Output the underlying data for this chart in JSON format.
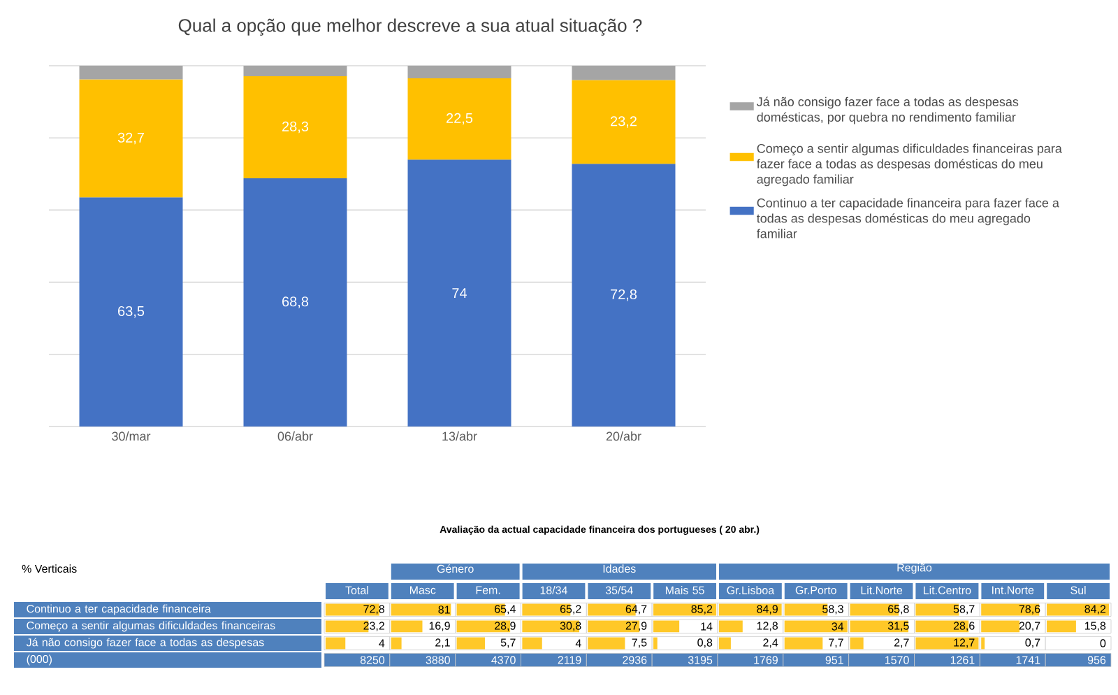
{
  "chart_data": [
    {
      "type": "bar",
      "title": "Qual a opção que melhor descreve a sua atual situação ?",
      "categories": [
        "30/mar",
        "06/abr",
        "13/abr",
        "20/abr"
      ],
      "stacked": true,
      "grid": "y",
      "legend": "right",
      "tick_labels": "x",
      "series": [
        {
          "name": "Continuo a ter capacidade financeira para fazer face a todas as despesas domésticas do meu agregado familiar",
          "color": "#4472c4",
          "values": [
            63.5,
            68.8,
            74,
            72.8
          ],
          "value_labels": [
            "63,5",
            "68,8",
            "74",
            "72,8"
          ]
        },
        {
          "name": "Começo a sentir algumas dificuldades financeiras para fazer face a todas as despesas domésticas do meu agregado familiar",
          "color": "#ffc000",
          "values": [
            32.7,
            28.3,
            22.5,
            23.2
          ],
          "value_labels": [
            "32,7",
            "28,3",
            "22,5",
            "23,2"
          ]
        },
        {
          "name": "Já não consigo fazer face a todas as despesas domésticas, por quebra no rendimento familiar",
          "color": "#a5a5a5",
          "values": [
            3.8,
            2.9,
            3.5,
            4
          ]
        }
      ]
    },
    {
      "type": "heatmap",
      "title": "Avaliação da actual capacidade financeira dos portugueses ( 20 abr.)",
      "annotations": [
        "% Verticais",
        "Género",
        "Idades",
        "Região"
      ],
      "categories": [
        "Total",
        "Masc",
        "Fem.",
        "18/34",
        "35/54",
        "Mais 55",
        "Gr.Lisboa",
        "Gr.Porto",
        "Lit.Norte",
        "Lit.Centro",
        "Int.Norte",
        "Sul"
      ],
      "y_categories": [
        "Continuo a ter capacidade financeira",
        "Começo a sentir algumas dificuldades financeiras",
        "Já não consigo fazer face a todas as despesas",
        "(000)"
      ],
      "cells": [
        [
          72.8,
          81,
          65.4,
          65.2,
          64.7,
          85.2,
          84.9,
          58.3,
          65.8,
          58.7,
          78.6,
          84.2
        ],
        [
          23.2,
          16.9,
          28.9,
          30.8,
          27.9,
          14,
          12.8,
          34,
          31.5,
          28.6,
          20.7,
          15.8
        ],
        [
          4,
          2.1,
          5.7,
          4,
          7.5,
          0.8,
          2.4,
          7.7,
          2.7,
          12.7,
          0.7,
          0
        ],
        [
          8250,
          3880,
          4370,
          2119,
          2936,
          3195,
          1769,
          951,
          1570,
          1261,
          1741,
          956
        ]
      ],
      "cell_labels": [
        [
          "72,8",
          "81",
          "65,4",
          "65,2",
          "64,7",
          "85,2",
          "84,9",
          "58,3",
          "65,8",
          "58,7",
          "78,6",
          "84,2"
        ],
        [
          "23,2",
          "16,9",
          "28,9",
          "30,8",
          "27,9",
          "14",
          "12,8",
          "34",
          "31,5",
          "28,6",
          "20,7",
          "15,8"
        ],
        [
          "4",
          "2,1",
          "5,7",
          "4",
          "7,5",
          "0,8",
          "2,4",
          "7,7",
          "2,7",
          "12,7",
          "0,7",
          "0"
        ],
        [
          "8250",
          "3880",
          "4370",
          "2119",
          "2936",
          "3195",
          "1769",
          "951",
          "1570",
          "1261",
          "1741",
          "956"
        ]
      ]
    }
  ]
}
